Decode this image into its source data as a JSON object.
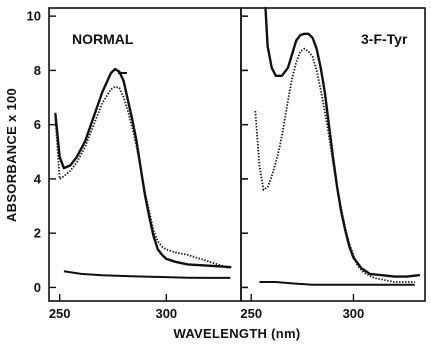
{
  "chart_data": [
    {
      "type": "line",
      "title": "NORMAL",
      "xlabel": "WAVELENGTH (nm)",
      "ylabel": "ABSORBANCE x 100",
      "xlim": [
        245,
        335
      ],
      "ylim": [
        -0.5,
        10.3
      ],
      "xticks": [
        250,
        300
      ],
      "xtick_labels": [
        "250",
        "300"
      ],
      "yticks": [
        0,
        2,
        4,
        6,
        8,
        10
      ],
      "ytick_labels": [
        "0",
        "2",
        "4",
        "6",
        "8",
        "10"
      ],
      "series": [
        {
          "style": "solid",
          "x": [
            248,
            250,
            252,
            255,
            258,
            262,
            266,
            270,
            274,
            276,
            278,
            280,
            282,
            284,
            286,
            288,
            290,
            292,
            294,
            296,
            298,
            300,
            304,
            310,
            320,
            330
          ],
          "y": [
            6.4,
            4.8,
            4.4,
            4.5,
            4.8,
            5.4,
            6.3,
            7.2,
            7.9,
            8.05,
            7.95,
            7.6,
            6.9,
            6.2,
            5.4,
            4.4,
            3.4,
            2.6,
            1.9,
            1.4,
            1.2,
            1.05,
            0.95,
            0.85,
            0.8,
            0.75
          ]
        },
        {
          "style": "dotted",
          "x": [
            248,
            250,
            252,
            255,
            258,
            262,
            266,
            270,
            274,
            276,
            278,
            280,
            282,
            284,
            286,
            288,
            290,
            292,
            294,
            296,
            298,
            300,
            304,
            310,
            316,
            322,
            326,
            330
          ],
          "y": [
            6.2,
            4.0,
            4.1,
            4.3,
            4.6,
            5.2,
            6.0,
            6.8,
            7.3,
            7.4,
            7.35,
            7.0,
            6.5,
            5.9,
            5.2,
            4.4,
            3.5,
            2.8,
            2.1,
            1.7,
            1.5,
            1.4,
            1.3,
            1.2,
            1.05,
            0.9,
            0.8,
            0.7
          ]
        },
        {
          "style": "solid",
          "x": [
            252,
            260,
            270,
            280,
            290,
            300,
            310,
            320,
            330
          ],
          "y": [
            0.6,
            0.5,
            0.45,
            0.42,
            0.4,
            0.38,
            0.36,
            0.35,
            0.35
          ]
        }
      ]
    },
    {
      "type": "line",
      "title": "3-F-Tyr",
      "xlabel": "WAVELENGTH (nm)",
      "ylabel": "",
      "xlim": [
        245,
        335
      ],
      "ylim": [
        -0.5,
        10.3
      ],
      "xticks": [
        250,
        300
      ],
      "xtick_labels": [
        "250",
        "300"
      ],
      "yticks": [
        0,
        2,
        4,
        6,
        8,
        10
      ],
      "ytick_labels": [],
      "series": [
        {
          "style": "solid",
          "x": [
            257,
            258,
            260,
            262,
            265,
            268,
            270,
            272,
            274,
            276,
            278,
            280,
            282,
            284,
            286,
            288,
            290,
            292,
            294,
            296,
            298,
            300,
            304,
            308,
            314,
            320,
            326,
            332
          ],
          "y": [
            10.3,
            8.9,
            8.1,
            7.8,
            7.8,
            8.1,
            8.6,
            9.1,
            9.3,
            9.35,
            9.35,
            9.2,
            8.8,
            8.1,
            7.2,
            6.0,
            4.8,
            3.7,
            2.8,
            2.1,
            1.5,
            1.1,
            0.7,
            0.5,
            0.45,
            0.4,
            0.4,
            0.45
          ]
        },
        {
          "style": "dotted",
          "x": [
            252,
            254,
            256,
            258,
            260,
            262,
            264,
            266,
            268,
            270,
            272,
            274,
            276,
            278,
            280,
            282,
            284,
            286,
            288,
            290,
            292,
            294,
            296,
            298,
            300,
            302,
            305,
            310,
            320,
            330
          ],
          "y": [
            6.5,
            4.5,
            3.6,
            3.7,
            4.1,
            4.6,
            5.2,
            6.0,
            6.9,
            7.7,
            8.3,
            8.7,
            8.8,
            8.7,
            8.5,
            8.0,
            7.3,
            6.5,
            5.6,
            4.6,
            3.7,
            2.9,
            2.2,
            1.6,
            1.2,
            0.8,
            0.55,
            0.35,
            0.2,
            0.2
          ]
        },
        {
          "style": "solid",
          "x": [
            254,
            262,
            270,
            280,
            290,
            300,
            310,
            320,
            330
          ],
          "y": [
            0.2,
            0.2,
            0.15,
            0.1,
            0.1,
            0.1,
            0.1,
            0.1,
            0.1
          ]
        }
      ]
    }
  ]
}
